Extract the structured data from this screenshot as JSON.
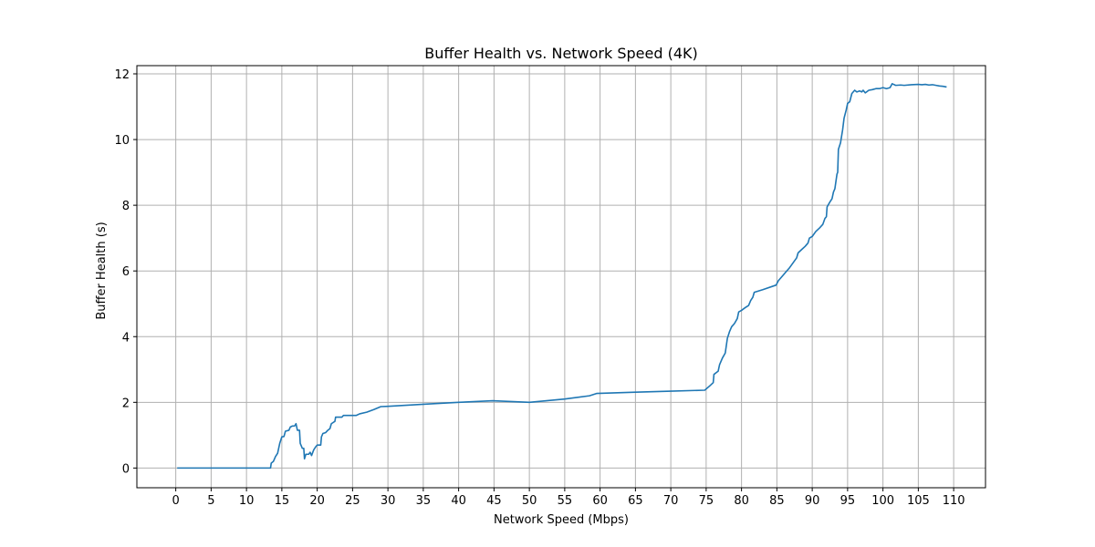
{
  "chart_data": {
    "type": "line",
    "title": "Buffer Health vs. Network Speed (4K)",
    "xlabel": "Network Speed (Mbps)",
    "ylabel": "Buffer Health (s)",
    "xlim": [
      -5.5,
      114.5
    ],
    "ylim": [
      -0.6,
      12.25
    ],
    "x_ticks": [
      0,
      5,
      10,
      15,
      20,
      25,
      30,
      35,
      40,
      45,
      50,
      55,
      60,
      65,
      70,
      75,
      80,
      85,
      90,
      95,
      100,
      105,
      110
    ],
    "y_ticks": [
      0,
      2,
      4,
      6,
      8,
      10,
      12
    ],
    "grid": true,
    "line_color": "#1f77b4",
    "series": [
      {
        "points": [
          [
            0.2,
            0.0
          ],
          [
            13.4,
            0.0
          ],
          [
            13.5,
            0.15
          ],
          [
            13.8,
            0.2
          ],
          [
            14.1,
            0.35
          ],
          [
            14.4,
            0.45
          ],
          [
            14.7,
            0.75
          ],
          [
            15.0,
            0.95
          ],
          [
            15.3,
            0.96
          ],
          [
            15.5,
            1.12
          ],
          [
            16.0,
            1.15
          ],
          [
            16.2,
            1.25
          ],
          [
            16.5,
            1.28
          ],
          [
            16.8,
            1.28
          ],
          [
            17.0,
            1.35
          ],
          [
            17.2,
            1.15
          ],
          [
            17.5,
            1.15
          ],
          [
            17.6,
            0.75
          ],
          [
            17.9,
            0.6
          ],
          [
            18.1,
            0.6
          ],
          [
            18.2,
            0.28
          ],
          [
            18.4,
            0.42
          ],
          [
            18.8,
            0.42
          ],
          [
            19.0,
            0.48
          ],
          [
            19.2,
            0.38
          ],
          [
            19.5,
            0.55
          ],
          [
            19.8,
            0.65
          ],
          [
            20.0,
            0.7
          ],
          [
            20.5,
            0.7
          ],
          [
            20.6,
            0.95
          ],
          [
            20.8,
            1.05
          ],
          [
            21.2,
            1.08
          ],
          [
            21.5,
            1.15
          ],
          [
            21.8,
            1.2
          ],
          [
            22.0,
            1.35
          ],
          [
            22.5,
            1.42
          ],
          [
            22.6,
            1.55
          ],
          [
            23.0,
            1.55
          ],
          [
            23.5,
            1.55
          ],
          [
            23.7,
            1.6
          ],
          [
            24.5,
            1.6
          ],
          [
            25.5,
            1.6
          ],
          [
            26.0,
            1.65
          ],
          [
            27.0,
            1.7
          ],
          [
            28.0,
            1.78
          ],
          [
            29.0,
            1.87
          ],
          [
            30.0,
            1.88
          ],
          [
            35.0,
            1.94
          ],
          [
            40.0,
            2.0
          ],
          [
            44.8,
            2.05
          ],
          [
            50.0,
            2.0
          ],
          [
            55.0,
            2.1
          ],
          [
            58.5,
            2.2
          ],
          [
            59.5,
            2.27
          ],
          [
            65.0,
            2.31
          ],
          [
            70.0,
            2.34
          ],
          [
            74.8,
            2.37
          ],
          [
            75.5,
            2.5
          ],
          [
            76.0,
            2.6
          ],
          [
            76.1,
            2.85
          ],
          [
            76.4,
            2.9
          ],
          [
            76.7,
            2.95
          ],
          [
            76.9,
            3.15
          ],
          [
            77.3,
            3.35
          ],
          [
            77.7,
            3.5
          ],
          [
            78.0,
            3.95
          ],
          [
            78.3,
            4.15
          ],
          [
            78.6,
            4.3
          ],
          [
            79.0,
            4.4
          ],
          [
            79.4,
            4.55
          ],
          [
            79.6,
            4.75
          ],
          [
            80.0,
            4.8
          ],
          [
            80.5,
            4.88
          ],
          [
            81.0,
            4.95
          ],
          [
            81.3,
            5.1
          ],
          [
            81.6,
            5.2
          ],
          [
            81.8,
            5.35
          ],
          [
            83.0,
            5.43
          ],
          [
            84.9,
            5.57
          ],
          [
            85.2,
            5.7
          ],
          [
            85.8,
            5.85
          ],
          [
            86.2,
            5.95
          ],
          [
            86.8,
            6.1
          ],
          [
            87.3,
            6.25
          ],
          [
            87.8,
            6.4
          ],
          [
            88.0,
            6.55
          ],
          [
            88.5,
            6.65
          ],
          [
            89.0,
            6.75
          ],
          [
            89.4,
            6.85
          ],
          [
            89.6,
            7.0
          ],
          [
            90.0,
            7.05
          ],
          [
            90.5,
            7.2
          ],
          [
            91.0,
            7.3
          ],
          [
            91.5,
            7.42
          ],
          [
            91.8,
            7.6
          ],
          [
            92.0,
            7.65
          ],
          [
            92.1,
            7.95
          ],
          [
            92.5,
            8.1
          ],
          [
            92.8,
            8.2
          ],
          [
            93.0,
            8.4
          ],
          [
            93.2,
            8.5
          ],
          [
            93.5,
            8.95
          ],
          [
            93.6,
            9.0
          ],
          [
            93.7,
            9.7
          ],
          [
            94.0,
            9.9
          ],
          [
            94.3,
            10.3
          ],
          [
            94.5,
            10.65
          ],
          [
            94.8,
            10.9
          ],
          [
            95.0,
            11.1
          ],
          [
            95.3,
            11.15
          ],
          [
            95.6,
            11.4
          ],
          [
            96.0,
            11.5
          ],
          [
            96.3,
            11.45
          ],
          [
            96.7,
            11.48
          ],
          [
            97.0,
            11.45
          ],
          [
            97.2,
            11.5
          ],
          [
            97.5,
            11.42
          ],
          [
            98.0,
            11.5
          ],
          [
            98.5,
            11.52
          ],
          [
            99.0,
            11.55
          ],
          [
            99.5,
            11.55
          ],
          [
            100.0,
            11.58
          ],
          [
            100.5,
            11.55
          ],
          [
            101.0,
            11.58
          ],
          [
            101.3,
            11.7
          ],
          [
            101.8,
            11.65
          ],
          [
            102.5,
            11.66
          ],
          [
            103.0,
            11.65
          ],
          [
            104.0,
            11.67
          ],
          [
            105.0,
            11.68
          ],
          [
            105.5,
            11.67
          ],
          [
            106.0,
            11.68
          ],
          [
            106.5,
            11.66
          ],
          [
            107.0,
            11.67
          ],
          [
            107.5,
            11.65
          ],
          [
            108.0,
            11.63
          ],
          [
            108.5,
            11.62
          ],
          [
            109.0,
            11.6
          ]
        ]
      }
    ]
  }
}
